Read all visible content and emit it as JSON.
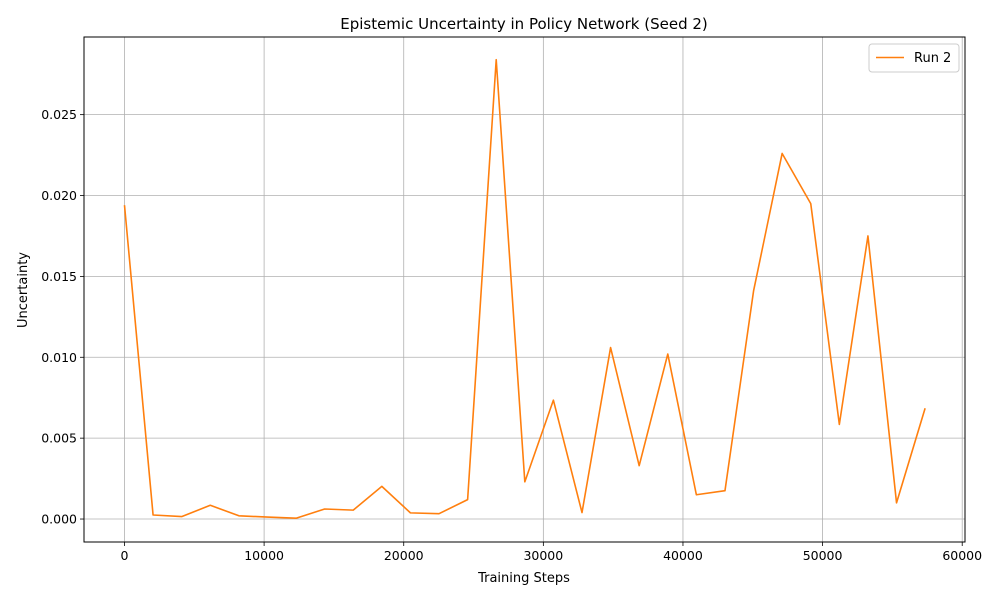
{
  "chart_data": {
    "type": "line",
    "title": "Epistemic Uncertainty in Policy Network (Seed 2)",
    "xlabel": "Training Steps",
    "ylabel": "Uncertainty",
    "xlim": [
      -2900,
      60200
    ],
    "ylim": [
      -0.00142,
      0.0298
    ],
    "x_ticks": [
      0,
      10000,
      20000,
      30000,
      40000,
      50000,
      60000
    ],
    "y_ticks": [
      0.0,
      0.005,
      0.01,
      0.015,
      0.02,
      0.025
    ],
    "x_tick_labels": [
      "0",
      "10000",
      "20000",
      "30000",
      "40000",
      "50000",
      "60000"
    ],
    "y_tick_labels": [
      "0.000",
      "0.005",
      "0.010",
      "0.015",
      "0.020",
      "0.025"
    ],
    "grid": true,
    "legend_position": "top-right",
    "series": [
      {
        "name": "Run 2",
        "color": "#ff7f0e",
        "x": [
          0,
          2048,
          4096,
          6144,
          8192,
          10240,
          12288,
          14336,
          16384,
          18432,
          20480,
          22528,
          24576,
          26624,
          28672,
          30720,
          32768,
          34816,
          36864,
          38912,
          40960,
          43008,
          45056,
          47104,
          49152,
          51200,
          53248,
          55296,
          57344
        ],
        "y": [
          0.0194,
          0.00025,
          0.00015,
          0.00085,
          0.0002,
          0.00012,
          5e-05,
          0.00062,
          0.00055,
          0.00202,
          0.00038,
          0.00033,
          0.0012,
          0.0284,
          0.0023,
          0.00735,
          0.0004,
          0.0106,
          0.0033,
          0.0102,
          0.0015,
          0.00175,
          0.0141,
          0.0226,
          0.0195,
          0.00585,
          0.0175,
          0.001,
          0.00685
        ]
      }
    ]
  }
}
